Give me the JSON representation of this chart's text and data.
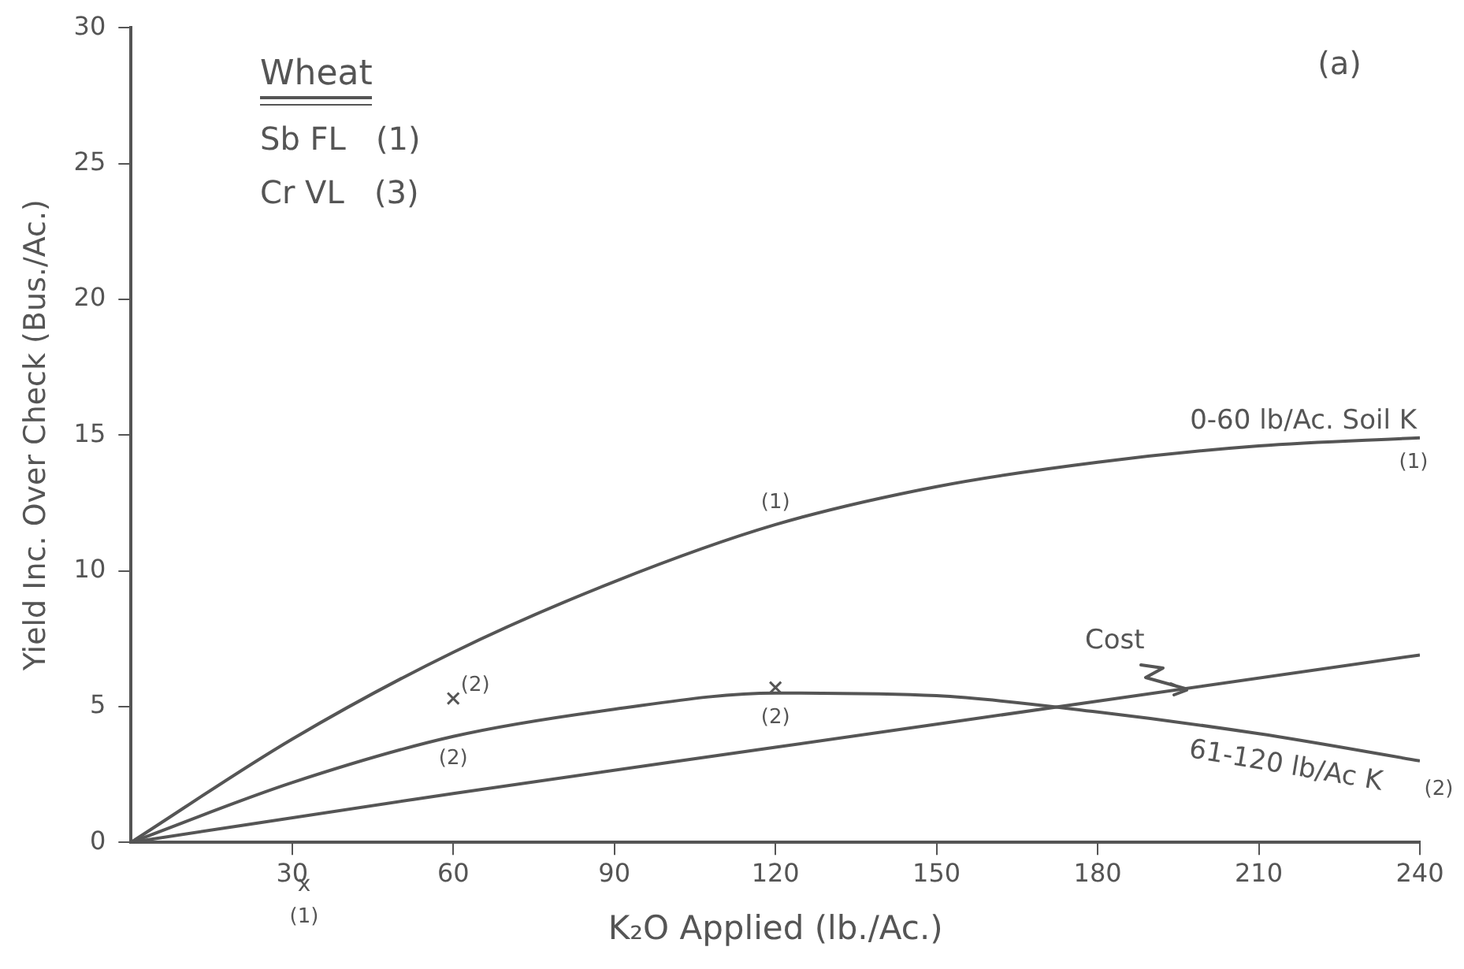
{
  "chart_data": {
    "type": "line",
    "xlabel": "K₂O Applied (lb./Ac.)",
    "ylabel": "Yield Inc. Over Check (Bus./Ac.)",
    "xlim": [
      0,
      240
    ],
    "xticks": [
      30,
      60,
      90,
      120,
      150,
      180,
      210,
      240
    ],
    "ylim": [
      0,
      30
    ],
    "yticks": [
      0,
      5,
      10,
      15,
      20,
      25,
      30
    ],
    "grid": false,
    "legend": false,
    "marker": "none",
    "line_style": "solid",
    "series": [
      {
        "name": "0-60 lb/Ac. Soil K",
        "color": "#555555",
        "x": [
          0,
          30,
          60,
          90,
          120,
          150,
          180,
          210,
          240
        ],
        "values": [
          0,
          3.8,
          7,
          9.6,
          11.7,
          13.1,
          14,
          14.6,
          14.9
        ]
      },
      {
        "name": "61-120 lb/Ac K",
        "color": "#555555",
        "x": [
          0,
          30,
          60,
          90,
          120,
          150,
          180,
          210,
          240
        ],
        "values": [
          0,
          2.2,
          3.9,
          4.9,
          5.5,
          5.4,
          4.8,
          4,
          3
        ]
      },
      {
        "name": "Cost",
        "color": "#555555",
        "x": [
          0,
          60,
          120,
          180,
          240
        ],
        "values": [
          0,
          1.8,
          3.5,
          5.2,
          6.9
        ]
      },
      {
        "type": "scatter",
        "marker": "cross",
        "color": "#555555",
        "x": [
          60,
          120
        ],
        "values": [
          5.3,
          5.7
        ]
      }
    ],
    "annotations": [
      "Wheat",
      "Sb FL   (1)",
      "Cr VL   (3)",
      "(a)",
      "x",
      "(1)",
      {
        "text": "(1)",
        "x": 120,
        "y": 11.7
      },
      {
        "text": "(1)",
        "x": 240,
        "y": 14.9
      },
      {
        "text": "(2)",
        "x": 60,
        "y": 4
      },
      {
        "text": "(2)",
        "x": 120,
        "y": 5.5
      },
      {
        "text": "(2)",
        "x": 240,
        "y": 3
      },
      {
        "text": "(2)",
        "x": 60,
        "y": 5.3
      }
    ]
  }
}
